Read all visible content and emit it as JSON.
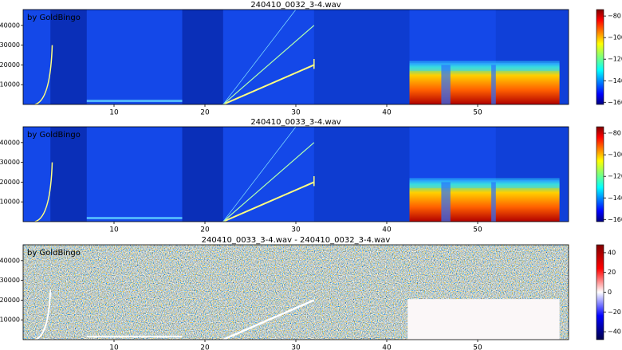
{
  "chart_data": [
    {
      "type": "spectrogram",
      "title": "240410_0032_3-4.wav",
      "annotation": "by GoldBingo",
      "colormap": "jet",
      "xlim": [
        0,
        60
      ],
      "xticks": [
        10,
        20,
        30,
        40,
        50
      ],
      "ylim": [
        0,
        48000
      ],
      "yticks": [
        10000,
        20000,
        30000,
        40000
      ],
      "clim": [
        -162,
        -74
      ],
      "cticks": [
        {
          "value": -80,
          "label": "−80"
        },
        {
          "value": -100,
          "label": "−100"
        },
        {
          "value": -120,
          "label": "−120"
        },
        {
          "value": -140,
          "label": "−140"
        },
        {
          "value": -160,
          "label": "−160"
        }
      ]
    },
    {
      "type": "spectrogram",
      "title": "240410_0033_3-4.wav",
      "annotation": "by GoldBingo",
      "colormap": "jet",
      "xlim": [
        0,
        60
      ],
      "xticks": [
        10,
        20,
        30,
        40,
        50
      ],
      "ylim": [
        0,
        48000
      ],
      "yticks": [
        10000,
        20000,
        30000,
        40000
      ],
      "clim": [
        -162,
        -74
      ],
      "cticks": [
        {
          "value": -80,
          "label": "−80"
        },
        {
          "value": -100,
          "label": "−100"
        },
        {
          "value": -120,
          "label": "−120"
        },
        {
          "value": -140,
          "label": "−140"
        },
        {
          "value": -160,
          "label": "−160"
        }
      ]
    },
    {
      "type": "difference",
      "title": "240410_0033_3-4.wav - 240410_0032_3-4.wav",
      "annotation": "by GoldBingo",
      "colormap": "seismic",
      "xlim": [
        0,
        60
      ],
      "xticks": [
        10,
        20,
        30,
        40,
        50
      ],
      "ylim": [
        0,
        48000
      ],
      "yticks": [
        10000,
        20000,
        30000,
        40000
      ],
      "clim": [
        -48,
        48
      ],
      "cticks": [
        40,
        20,
        0,
        {
          "value": -20,
          "label": "−20"
        },
        {
          "value": -40,
          "label": "−40"
        }
      ]
    }
  ]
}
